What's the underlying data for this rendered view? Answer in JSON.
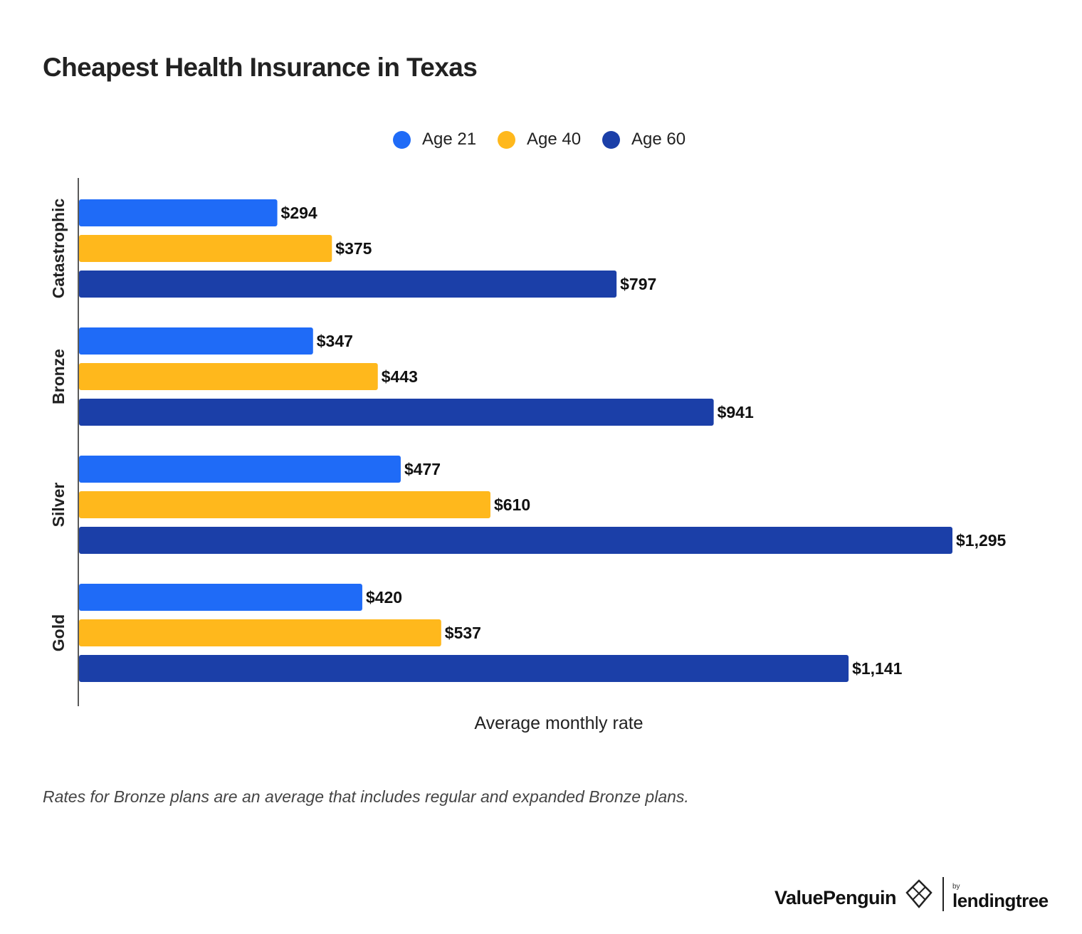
{
  "chart_data": {
    "type": "bar",
    "orientation": "horizontal",
    "title": "Cheapest Health Insurance in Texas",
    "xlabel": "Average monthly rate",
    "ylabel": "",
    "xlim": [
      0,
      1295
    ],
    "categories": [
      "Catastrophic",
      "Bronze",
      "Silver",
      "Gold"
    ],
    "series": [
      {
        "name": "Age 21",
        "color": "#1F6BF7",
        "values": [
          294,
          347,
          477,
          420
        ],
        "labels": [
          "$294",
          "$347",
          "$477",
          "$420"
        ]
      },
      {
        "name": "Age 40",
        "color": "#FFB81C",
        "values": [
          375,
          443,
          610,
          537
        ],
        "labels": [
          "$375",
          "$443",
          "$610",
          "$537"
        ]
      },
      {
        "name": "Age 60",
        "color": "#1B3FA8",
        "values": [
          797,
          941,
          1295,
          1141
        ],
        "labels": [
          "$797",
          "$941",
          "$1,295",
          "$1,141"
        ]
      }
    ],
    "legend_position": "top-center",
    "grid": false
  },
  "note": "Rates for Bronze plans are an average that includes regular and expanded Bronze plans.",
  "branding": {
    "primary": "ValuePenguin",
    "by": "by",
    "secondary": "lendingtree"
  }
}
